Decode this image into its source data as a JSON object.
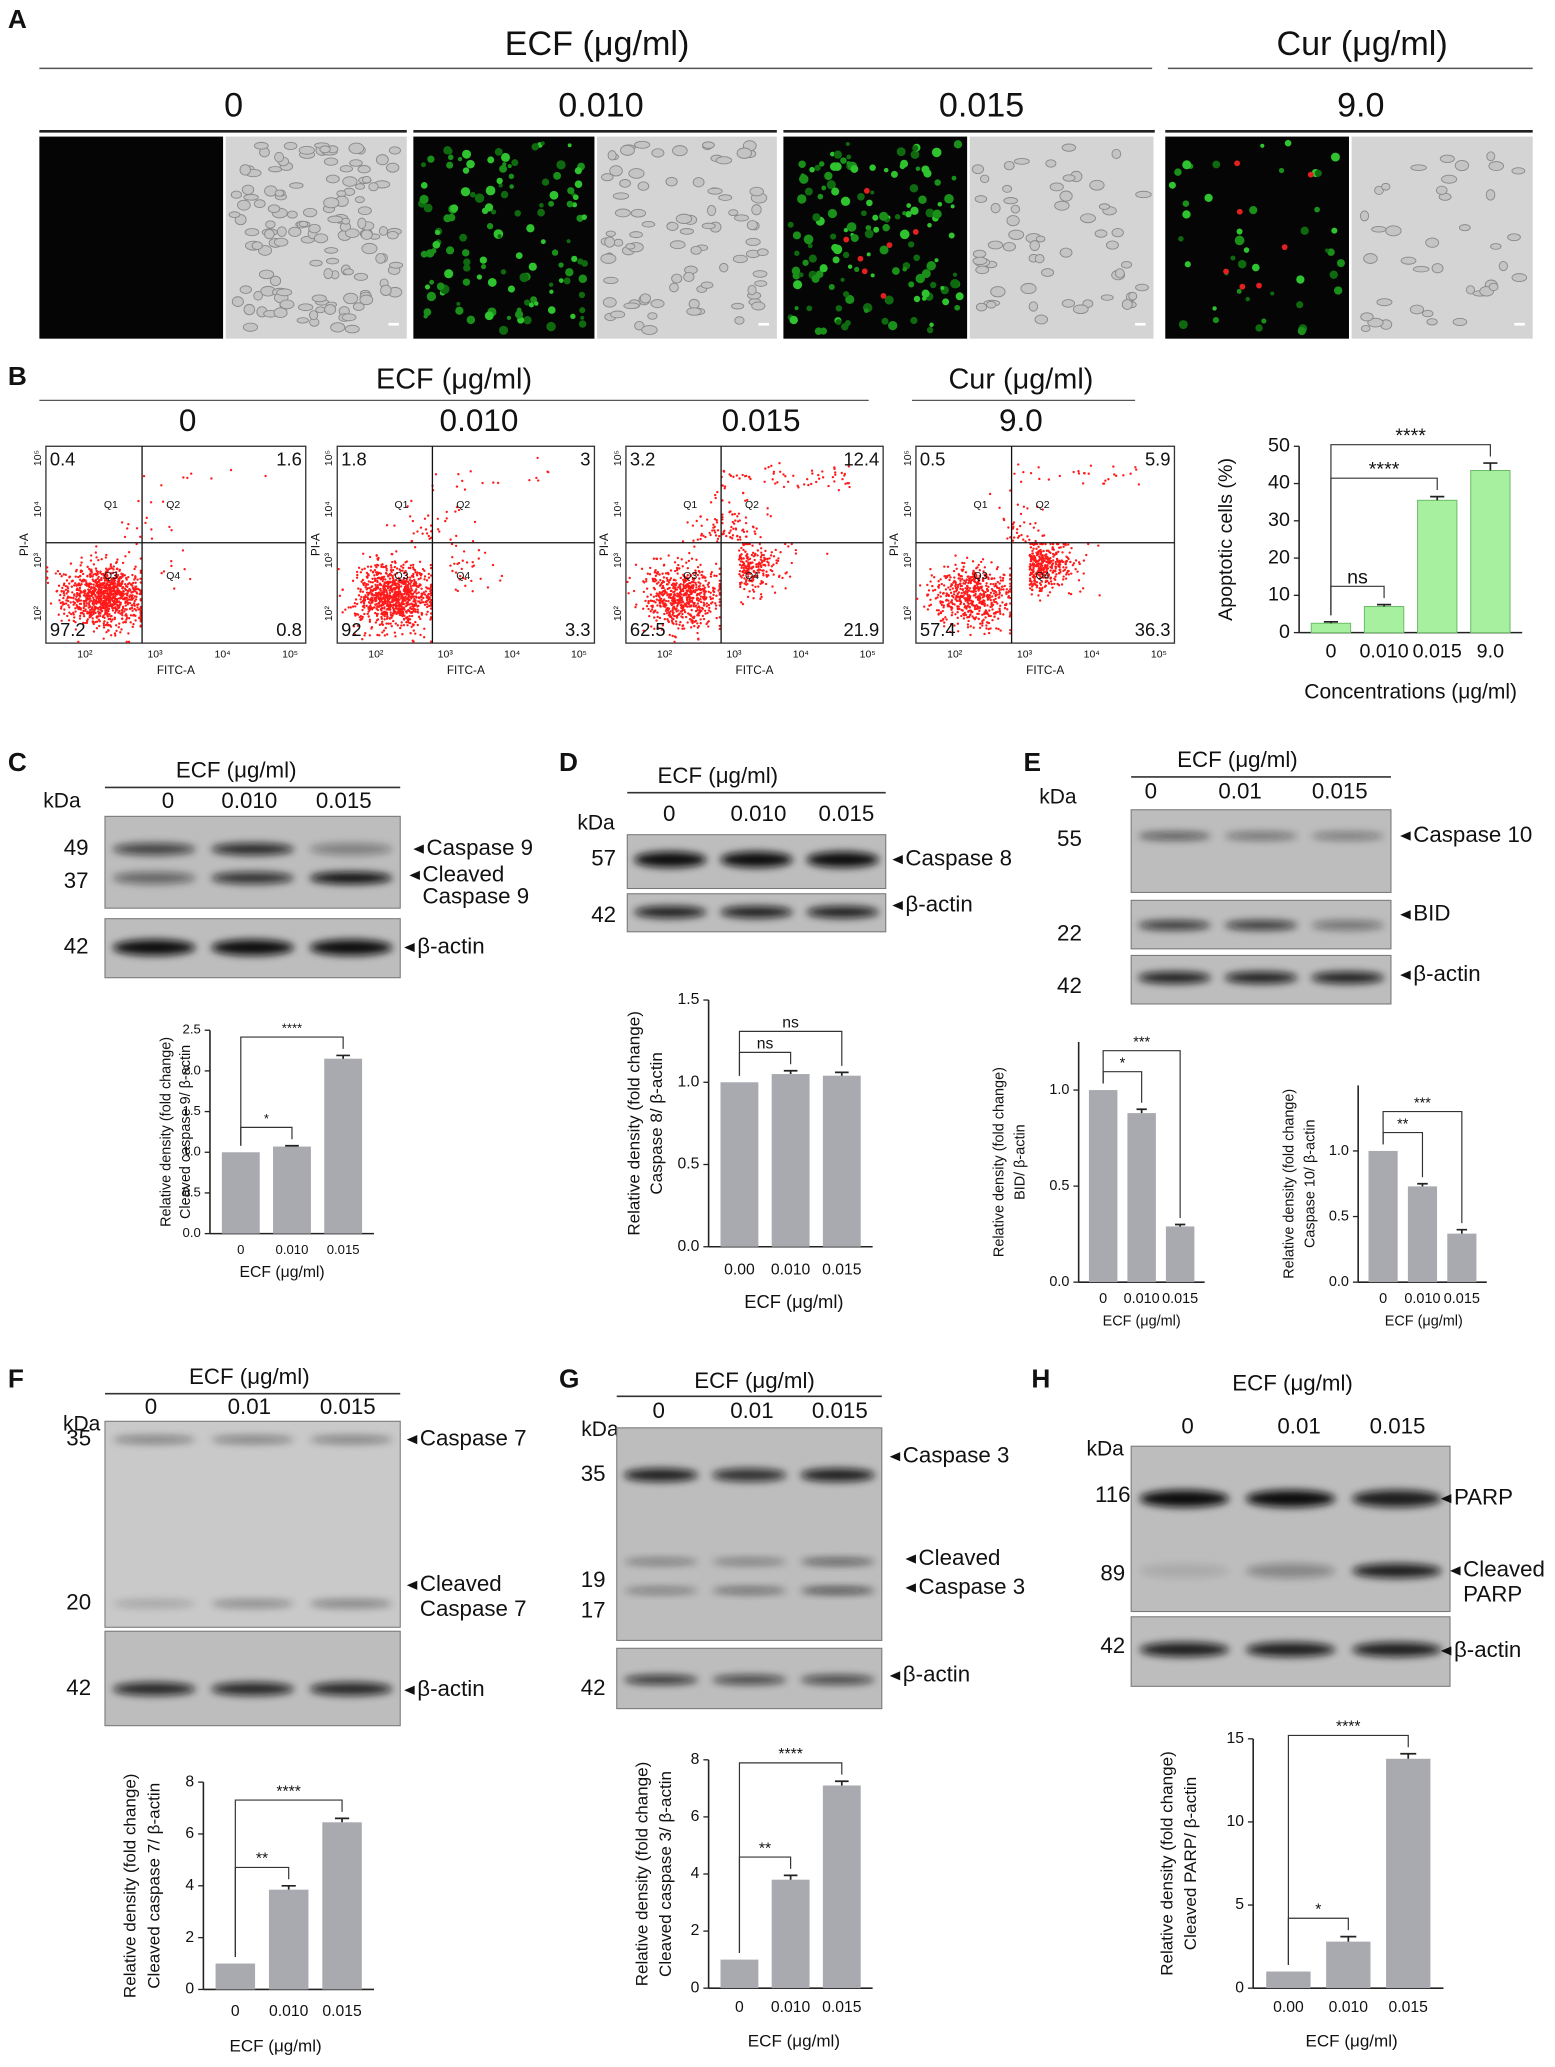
{
  "figure": {
    "A": {
      "label": "A",
      "groups": [
        {
          "title": "ECF (μg/ml)"
        },
        {
          "title": "Cur (μg/ml)"
        }
      ],
      "concentrations": [
        "0",
        "0.010",
        "0.015",
        "9.0"
      ]
    },
    "B": {
      "label": "B",
      "groups": [
        {
          "title": "ECF (μg/ml)"
        },
        {
          "title": "Cur (μg/ml)"
        }
      ],
      "concentrations": [
        "0",
        "0.010",
        "0.015",
        "9.0"
      ],
      "plots": [
        {
          "quadrants": [
            "0.4",
            "1.6",
            "97.2",
            "0.8"
          ]
        },
        {
          "quadrants": [
            "1.8",
            "3",
            "92",
            "3.3"
          ]
        },
        {
          "quadrants": [
            "3.2",
            "12.4",
            "62.5",
            "21.9"
          ]
        },
        {
          "quadrants": [
            "0.5",
            "5.9",
            "57.4",
            "36.3"
          ]
        }
      ],
      "gate_labels": [
        "Q1",
        "Q2",
        "Q3",
        "Q4"
      ],
      "x_label": "FITC-A",
      "y_label": "PI-A",
      "axis_ticks": [
        "10²",
        "10³",
        "10⁴",
        "10⁵"
      ]
    },
    "blots": [
      {
        "label": "C",
        "header": "ECF (μg/ml)",
        "unit": "kDa",
        "lanes": [
          "0",
          "0.010",
          "0.015"
        ],
        "markers": [
          "49",
          "37",
          "42"
        ],
        "bands": [
          "Caspase 9",
          "Cleaved",
          "Caspase 9",
          "β-actin"
        ]
      },
      {
        "label": "D",
        "header": "ECF (μg/ml)",
        "unit": "kDa",
        "lanes": [
          "0",
          "0.010",
          "0.015"
        ],
        "markers": [
          "57",
          "42"
        ],
        "bands": [
          "Caspase 8",
          "β-actin"
        ]
      },
      {
        "label": "E",
        "header": "ECF (μg/ml)",
        "unit": "kDa",
        "lanes": [
          "0",
          "0.01",
          "0.015"
        ],
        "markers": [
          "55",
          "22",
          "42"
        ],
        "bands": [
          "Caspase 10",
          "BID",
          "β-actin"
        ]
      },
      {
        "label": "F",
        "header": "ECF (μg/ml)",
        "unit": "kDa",
        "lanes": [
          "0",
          "0.01",
          "0.015"
        ],
        "markers": [
          "35",
          "20",
          "42"
        ],
        "bands": [
          "Caspase 7",
          "Cleaved",
          "Caspase 7",
          "β-actin"
        ]
      },
      {
        "label": "G",
        "header": "ECF (μg/ml)",
        "unit": "kDa",
        "lanes": [
          "0",
          "0.01",
          "0.015"
        ],
        "markers": [
          "35",
          "19",
          "17",
          "42"
        ],
        "bands": [
          "Caspase 3",
          "Cleaved",
          "Caspase 3",
          "β-actin"
        ]
      },
      {
        "label": "H",
        "header": "ECF (μg/ml)",
        "unit": "kDa",
        "lanes": [
          "0",
          "0.01",
          "0.015"
        ],
        "markers": [
          "116",
          "89",
          "42"
        ],
        "bands": [
          "PARP",
          "Cleaved",
          "PARP",
          "β-actin"
        ]
      }
    ]
  },
  "chart_data": [
    {
      "type": "bar",
      "ylabel": [
        "Apoptotic cells (%)"
      ],
      "xlabel": "Concentrations (μg/ml)",
      "categories": [
        "0",
        "0.010",
        "0.015",
        "9.0"
      ],
      "values": [
        2.5,
        7,
        35.5,
        43.5
      ],
      "errors": [
        0.4,
        0.5,
        1,
        2
      ],
      "color": "#a6f0a0",
      "ylim": [
        0,
        50
      ],
      "yticks": [
        0,
        10,
        20,
        30,
        40,
        50
      ],
      "annotations": [
        {
          "label": "ns",
          "from": 0,
          "to": 1
        },
        {
          "label": "****",
          "from": 0,
          "to": 2
        },
        {
          "label": "****",
          "from": 0,
          "to": 3
        }
      ]
    },
    {
      "type": "bar",
      "ylabel": [
        "Relative density (fold change)",
        "Cleaved caspase 9/ β-actin"
      ],
      "xlabel": "ECF (μg/ml)",
      "categories": [
        "0",
        "0.010",
        "0.015"
      ],
      "values": [
        1.0,
        1.07,
        2.15
      ],
      "errors": [
        0,
        0.01,
        0.04
      ],
      "color": "#a9a9b0",
      "ylim": [
        0,
        2.5
      ],
      "yticks": [
        {
          "value": 0,
          "label": "0.0"
        },
        0.5,
        {
          "value": 1,
          "label": "1.0"
        },
        1.5,
        {
          "value": 2,
          "label": "2.0"
        },
        2.5
      ],
      "annotations": [
        {
          "label": "*",
          "from": 0,
          "to": 1
        },
        {
          "label": "****",
          "from": 0,
          "to": 2
        }
      ]
    },
    {
      "type": "bar",
      "ylabel": [
        "Relative density (fold change)",
        "Caspase 8/ β-actin"
      ],
      "xlabel": "ECF (μg/ml)",
      "categories": [
        "0.00",
        "0.010",
        "0.015"
      ],
      "values": [
        1.0,
        1.05,
        1.04
      ],
      "errors": [
        0,
        0.02,
        0.02
      ],
      "color": "#a9a9b0",
      "ylim": [
        0,
        1.5
      ],
      "yticks": [
        {
          "value": 0,
          "label": "0.0"
        },
        0.5,
        {
          "value": 1,
          "label": "1.0"
        },
        1.5
      ],
      "annotations": [
        {
          "label": "ns",
          "from": 0,
          "to": 1
        },
        {
          "label": "ns",
          "from": 0,
          "to": 2
        }
      ]
    },
    {
      "type": "bar",
      "ylabel": [
        "Relative density (fold change)",
        "BID/ β-actin"
      ],
      "xlabel": "ECF (μg/ml)",
      "categories": [
        "0",
        "0.010",
        "0.015"
      ],
      "values": [
        1.0,
        0.88,
        0.29
      ],
      "errors": [
        0,
        0.02,
        0.01
      ],
      "color": "#a9a9b0",
      "ylim": [
        0,
        1.25
      ],
      "yticks": [
        {
          "value": 0,
          "label": "0.0"
        },
        0.5,
        {
          "value": 1,
          "label": "1.0"
        }
      ],
      "annotations": [
        {
          "label": "*",
          "from": 0,
          "to": 1
        },
        {
          "label": "***",
          "from": 0,
          "to": 2
        }
      ]
    },
    {
      "type": "bar",
      "ylabel": [
        "Relative density (fold change)",
        "Caspase 10/ β-actin"
      ],
      "xlabel": "ECF (μg/ml)",
      "categories": [
        "0",
        "0.010",
        "0.015"
      ],
      "values": [
        1.0,
        0.73,
        0.37
      ],
      "errors": [
        0,
        0.02,
        0.03
      ],
      "color": "#a9a9b0",
      "ylim": [
        0,
        1.5
      ],
      "yticks": [
        {
          "value": 0,
          "label": "0.0"
        },
        0.5,
        {
          "value": 1,
          "label": "1.0"
        }
      ],
      "annotations": [
        {
          "label": "**",
          "from": 0,
          "to": 1
        },
        {
          "label": "***",
          "from": 0,
          "to": 2
        }
      ]
    },
    {
      "type": "bar",
      "ylabel": [
        "Relative density (fold change)",
        "Cleaved caspase 7/ β-actin"
      ],
      "xlabel": "ECF (μg/ml)",
      "categories": [
        "0",
        "0.010",
        "0.015"
      ],
      "values": [
        1.0,
        3.85,
        6.45
      ],
      "errors": [
        0,
        0.15,
        0.15
      ],
      "color": "#a9a9b0",
      "ylim": [
        0,
        8
      ],
      "yticks": [
        0,
        2,
        4,
        6,
        8
      ],
      "annotations": [
        {
          "label": "**",
          "from": 0,
          "to": 1
        },
        {
          "label": "****",
          "from": 0,
          "to": 2
        }
      ]
    },
    {
      "type": "bar",
      "ylabel": [
        "Relative density (fold change)",
        "Cleaved caspase 3/ β-actin"
      ],
      "xlabel": "ECF (μg/ml)",
      "categories": [
        "0",
        "0.010",
        "0.015"
      ],
      "values": [
        1.0,
        3.8,
        7.1
      ],
      "errors": [
        0,
        0.15,
        0.15
      ],
      "color": "#a9a9b0",
      "ylim": [
        0,
        8
      ],
      "yticks": [
        0,
        2,
        4,
        6,
        8
      ],
      "annotations": [
        {
          "label": "**",
          "from": 0,
          "to": 1
        },
        {
          "label": "****",
          "from": 0,
          "to": 2
        }
      ]
    },
    {
      "type": "bar",
      "ylabel": [
        "Relative density (fold change)",
        "Cleaved PARP/ β-actin"
      ],
      "xlabel": "ECF (μg/ml)",
      "categories": [
        "0.00",
        "0.010",
        "0.015"
      ],
      "values": [
        1.0,
        2.8,
        13.8
      ],
      "errors": [
        0,
        0.3,
        0.3
      ],
      "color": "#a9a9b0",
      "ylim": [
        0,
        15
      ],
      "yticks": [
        0,
        5,
        10,
        15
      ],
      "annotations": [
        {
          "label": "*",
          "from": 0,
          "to": 1
        },
        {
          "label": "****",
          "from": 0,
          "to": 2
        }
      ]
    }
  ]
}
